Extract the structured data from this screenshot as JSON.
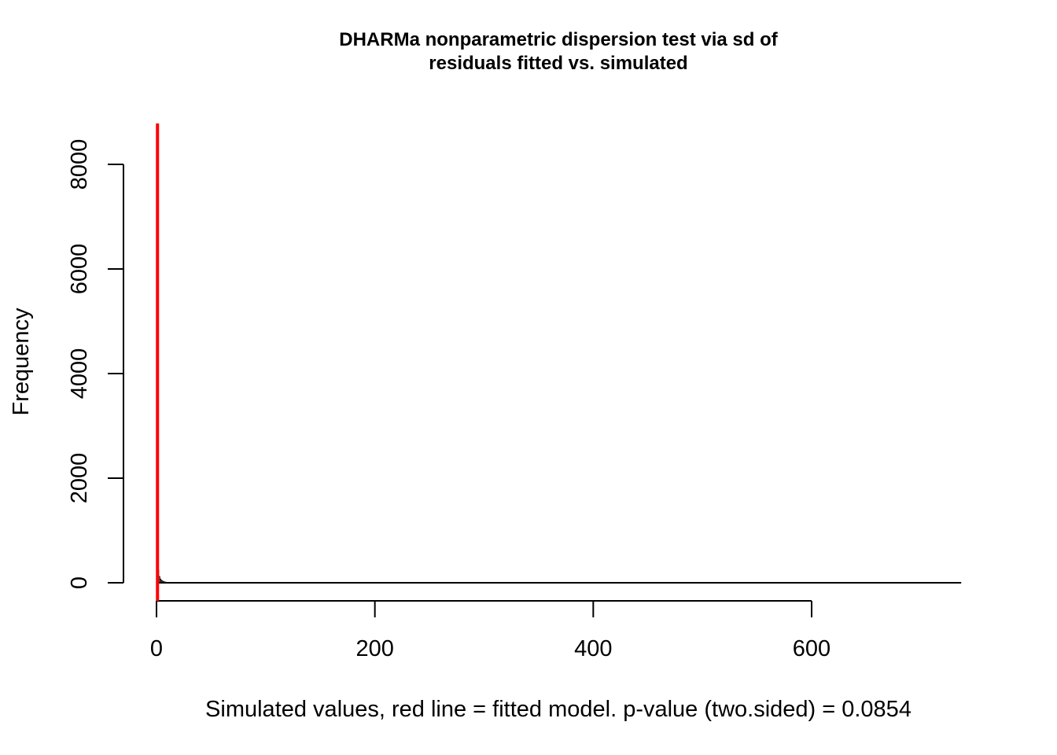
{
  "chart_data": {
    "type": "bar",
    "title_lines": [
      "DHARMa nonparametric dispersion test via sd of",
      "residuals fitted vs. simulated"
    ],
    "xlabel": "Simulated values, red line = fitted model. p-value (two.sided) = 0.0854",
    "ylabel": "Frequency",
    "xlim": [
      0,
      737
    ],
    "ylim": [
      0,
      8700
    ],
    "x_ticks": [
      0,
      200,
      400,
      600
    ],
    "y_ticks": [
      0,
      2000,
      4000,
      6000,
      8000
    ],
    "x_tick_labels": [
      "0",
      "200",
      "400",
      "600"
    ],
    "y_tick_labels": [
      "0",
      "2000",
      "4000",
      "6000",
      "8000"
    ],
    "bin_width": 1,
    "bins": [
      {
        "x0": 0,
        "x1": 1,
        "count": 8700
      },
      {
        "x0": 1,
        "x1": 2,
        "count": 240
      },
      {
        "x0": 2,
        "x1": 3,
        "count": 120
      },
      {
        "x0": 3,
        "x1": 4,
        "count": 70
      },
      {
        "x0": 4,
        "x1": 5,
        "count": 45
      },
      {
        "x0": 5,
        "x1": 6,
        "count": 30
      },
      {
        "x0": 6,
        "x1": 7,
        "count": 20
      },
      {
        "x0": 7,
        "x1": 8,
        "count": 14
      },
      {
        "x0": 8,
        "x1": 9,
        "count": 10
      },
      {
        "x0": 9,
        "x1": 10,
        "count": 7
      },
      {
        "x0": 10,
        "x1": 11,
        "count": 5
      },
      {
        "x0": 11,
        "x1": 12,
        "count": 4
      },
      {
        "x0": 12,
        "x1": 13,
        "count": 3
      },
      {
        "x0": 13,
        "x1": 14,
        "count": 2
      },
      {
        "x0": 14,
        "x1": 15,
        "count": 2
      },
      {
        "x0": 15,
        "x1": 16,
        "count": 1
      },
      {
        "x0": 16,
        "x1": 17,
        "count": 1
      },
      {
        "x0": 17,
        "x1": 18,
        "count": 1
      }
    ],
    "observed_value": 0.9,
    "colors": {
      "reference_line": "#ff0000",
      "bars": "#000000",
      "axes": "#000000"
    }
  }
}
